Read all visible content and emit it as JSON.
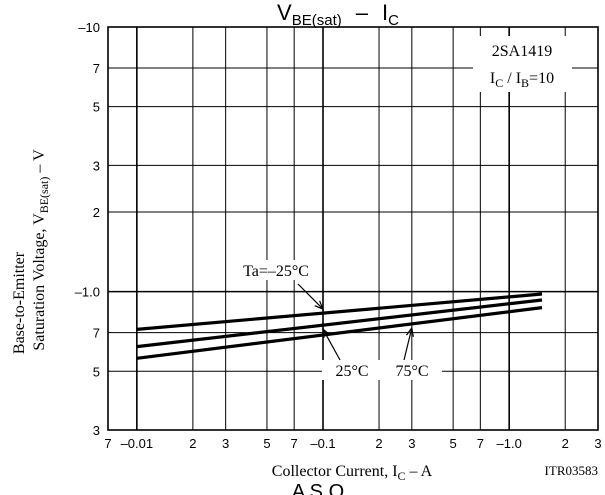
{
  "chart_data": {
    "type": "line",
    "title": {
      "main": "V",
      "sub": "BE(sat)",
      "dash": "–",
      "main2": "I",
      "sub2": "C"
    },
    "annotation": {
      "part": "2SA1419",
      "cond_pre": "I",
      "cond_sub1": "C",
      "cond_mid": " / I",
      "cond_sub2": "B",
      "cond_post": "=10"
    },
    "xlabel": {
      "pre": "Collector Current, I",
      "sub": "C",
      "post": "  –  A"
    },
    "ylabel": {
      "line1": "Base-to-Emitter",
      "line2_pre": "Saturation Voltage, V",
      "line2_sub": "BE(sat)",
      "line2_post": "  –  V"
    },
    "figure_code": "ITR03583",
    "footer": "A S O",
    "x_scale": "log",
    "y_scale": "log",
    "xlim": [
      0.007,
      3.0
    ],
    "ylim": [
      0.3,
      10
    ],
    "grid": true,
    "x_ticks": [
      {
        "v": 0.007,
        "l": "7"
      },
      {
        "v": 0.01,
        "l": "–0.01"
      },
      {
        "v": 0.02,
        "l": "2"
      },
      {
        "v": 0.03,
        "l": "3"
      },
      {
        "v": 0.05,
        "l": "5"
      },
      {
        "v": 0.07,
        "l": "7"
      },
      {
        "v": 0.1,
        "l": "–0.1"
      },
      {
        "v": 0.2,
        "l": "2"
      },
      {
        "v": 0.3,
        "l": "3"
      },
      {
        "v": 0.5,
        "l": "5"
      },
      {
        "v": 0.7,
        "l": "7"
      },
      {
        "v": 1.0,
        "l": "–1.0"
      },
      {
        "v": 2.0,
        "l": "2"
      },
      {
        "v": 3.0,
        "l": "3"
      }
    ],
    "y_ticks": [
      {
        "v": 0.3,
        "l": "3"
      },
      {
        "v": 0.5,
        "l": "5"
      },
      {
        "v": 0.7,
        "l": "7"
      },
      {
        "v": 1.0,
        "l": "–1.0"
      },
      {
        "v": 2.0,
        "l": "2"
      },
      {
        "v": 3.0,
        "l": "3"
      },
      {
        "v": 5.0,
        "l": "5"
      },
      {
        "v": 7.0,
        "l": "7"
      },
      {
        "v": 10.0,
        "l": "–10"
      }
    ],
    "series": [
      {
        "name": "Ta=–25°C",
        "x": [
          0.01,
          1.5
        ],
        "y": [
          0.72,
          0.98
        ]
      },
      {
        "name": "25°C",
        "x": [
          0.01,
          1.5
        ],
        "y": [
          0.62,
          0.93
        ]
      },
      {
        "name": "75°C",
        "x": [
          0.01,
          1.5
        ],
        "y": [
          0.56,
          0.87
        ]
      }
    ],
    "labels": [
      {
        "text": "Ta=–25°C",
        "series": 0,
        "at": [
          0.1,
          0.83
        ]
      },
      {
        "text": "25°C",
        "series": 1,
        "at": [
          0.1,
          0.76
        ]
      },
      {
        "text": "75°C",
        "series": 2,
        "at": [
          0.3,
          0.75
        ]
      }
    ]
  }
}
